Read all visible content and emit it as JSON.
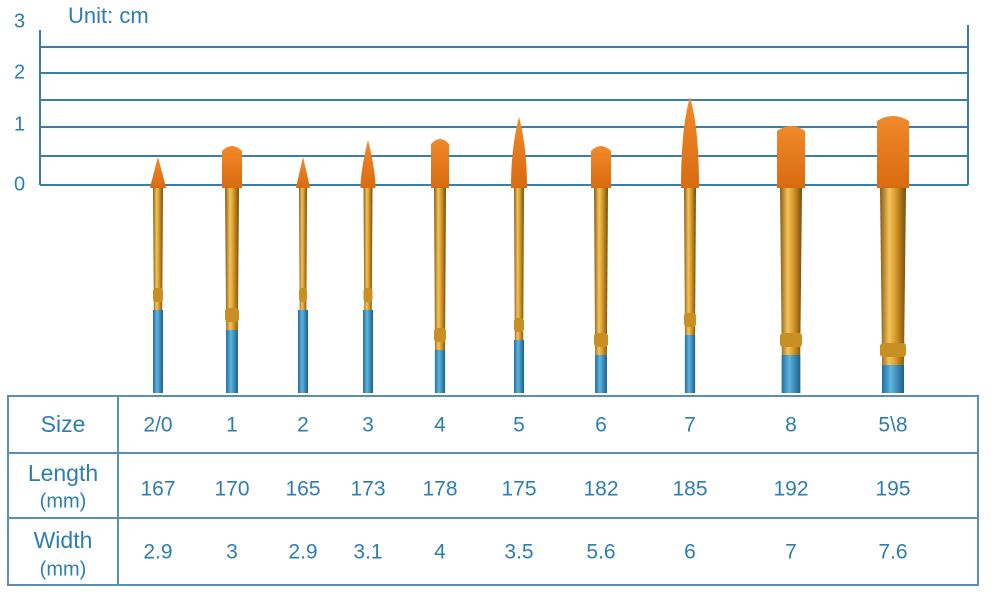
{
  "ruler": {
    "unit": "Unit: cm",
    "labels": [
      "3",
      "2",
      "1",
      "0"
    ]
  },
  "table": {
    "rows": [
      {
        "label": "Size",
        "values": [
          "2/0",
          "1",
          "2",
          "3",
          "4",
          "5",
          "6",
          "7",
          "8",
          "5\\8"
        ]
      },
      {
        "label": "Length",
        "unit": "(mm)",
        "values": [
          "167",
          "170",
          "165",
          "173",
          "178",
          "175",
          "182",
          "185",
          "192",
          "195"
        ]
      },
      {
        "label": "Width",
        "unit": "(mm)",
        "values": [
          "2.9",
          "3",
          "2.9",
          "3.1",
          "4",
          "3.5",
          "5.6",
          "6",
          "7",
          "7.6"
        ]
      }
    ]
  }
}
